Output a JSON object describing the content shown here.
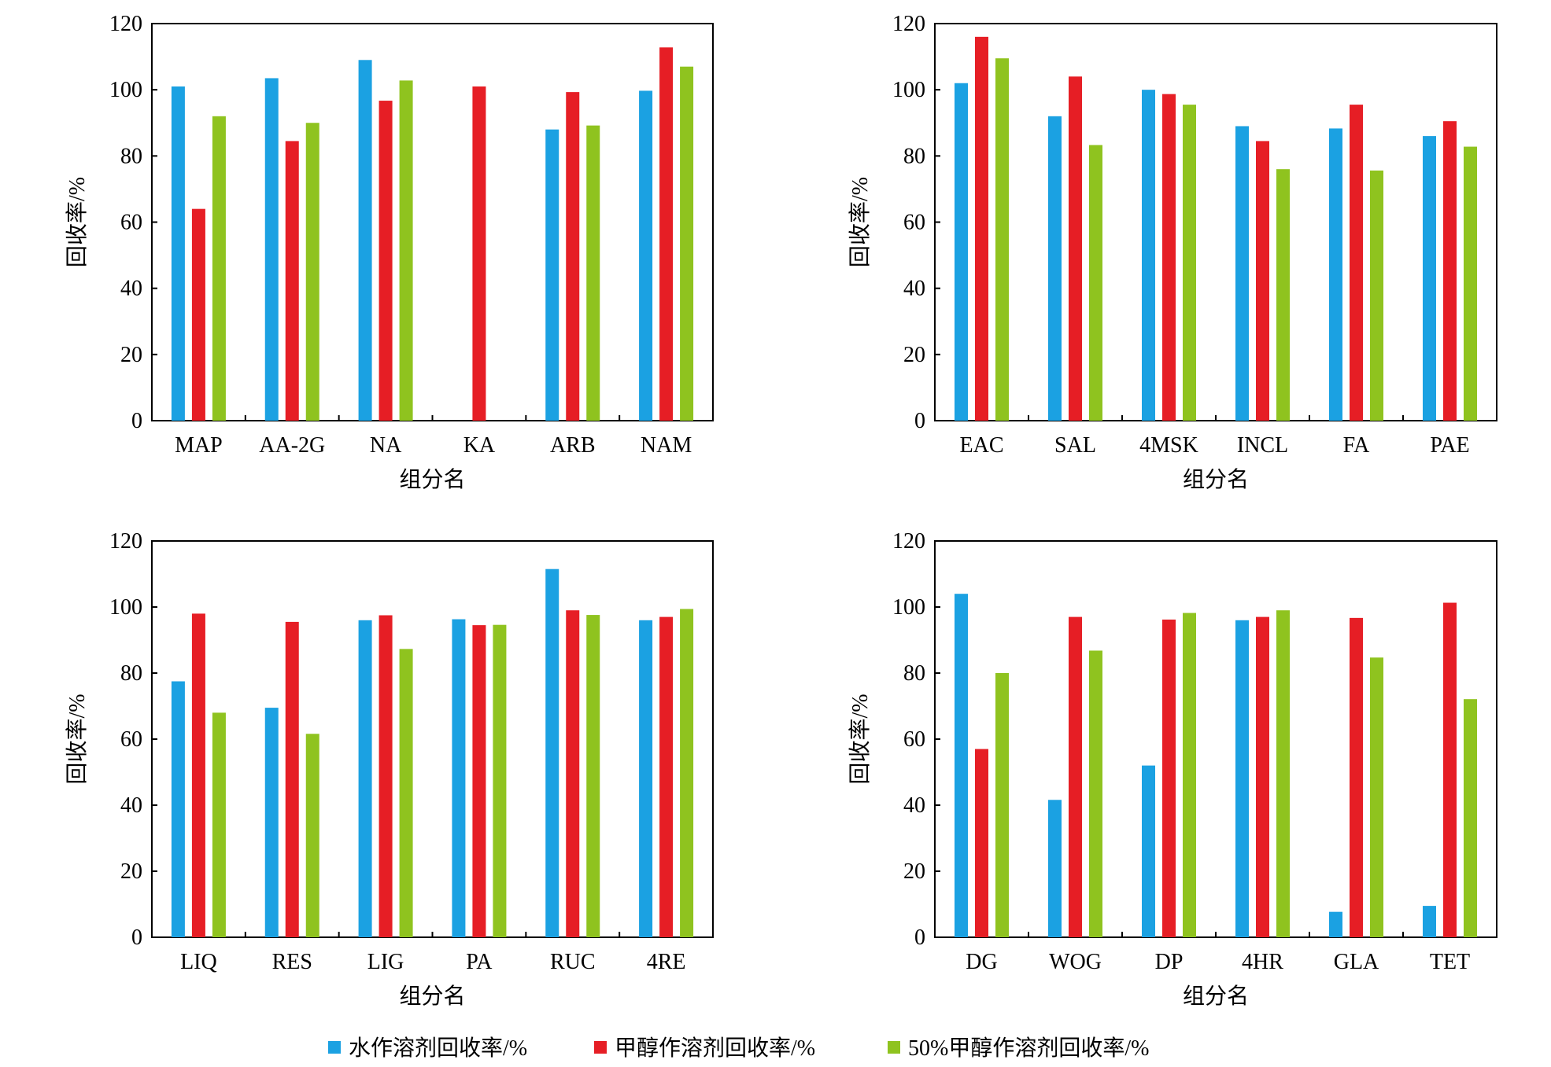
{
  "chart_data": [
    {
      "type": "bar",
      "categories": [
        "MAP",
        "AA-2G",
        "NA",
        "KA",
        "ARB",
        "NAM"
      ],
      "series": [
        {
          "name": "水作溶剂回收率/%",
          "values": [
            101,
            103.5,
            109,
            0,
            88,
            99.7
          ]
        },
        {
          "name": "甲醇作溶剂回收率/%",
          "values": [
            64,
            84.5,
            96.7,
            101,
            99.3,
            112.8
          ]
        },
        {
          "name": "50%甲醇作溶剂回收率/%",
          "values": [
            92,
            90,
            102.8,
            0,
            89.2,
            107
          ]
        }
      ],
      "xlabel": "组分名",
      "ylabel": "回收率/%",
      "ylim": [
        0,
        120
      ],
      "yticks": [
        "0",
        "20",
        "40",
        "60",
        "80",
        "100",
        "120"
      ]
    },
    {
      "type": "bar",
      "categories": [
        "EAC",
        "SAL",
        "4MSK",
        "INCL",
        "FA",
        "PAE"
      ],
      "series": [
        {
          "name": "水作溶剂回收率/%",
          "values": [
            102,
            92,
            100,
            89,
            88.3,
            86
          ]
        },
        {
          "name": "甲醇作溶剂回收率/%",
          "values": [
            116,
            104,
            98.7,
            84.5,
            95.5,
            90.5
          ]
        },
        {
          "name": "50%甲醇作溶剂回收率/%",
          "values": [
            109.5,
            83.3,
            95.5,
            76,
            75.6,
            82.8
          ]
        }
      ],
      "xlabel": "组分名",
      "ylabel": "回收率/%",
      "ylim": [
        0,
        120
      ],
      "yticks": [
        "0",
        "20",
        "40",
        "60",
        "80",
        "100",
        "120"
      ]
    },
    {
      "type": "bar",
      "categories": [
        "LIQ",
        "RES",
        "LIG",
        "PA",
        "RUC",
        "4RE"
      ],
      "series": [
        {
          "name": "水作溶剂回收率/%",
          "values": [
            77.5,
            69.5,
            96,
            96.3,
            111.5,
            96
          ]
        },
        {
          "name": "甲醇作溶剂回收率/%",
          "values": [
            98,
            95.5,
            97.5,
            94.5,
            99,
            97
          ]
        },
        {
          "name": "50%甲醇作溶剂回收率/%",
          "values": [
            68,
            61.6,
            87.3,
            94.6,
            97.6,
            99.4
          ]
        }
      ],
      "xlabel": "组分名",
      "ylabel": "回收率/%",
      "ylim": [
        0,
        120
      ],
      "yticks": [
        "0",
        "20",
        "40",
        "60",
        "80",
        "100",
        "120"
      ]
    },
    {
      "type": "bar",
      "categories": [
        "DG",
        "WOG",
        "DP",
        "4HR",
        "GLA",
        "TET"
      ],
      "series": [
        {
          "name": "水作溶剂回收率/%",
          "values": [
            104,
            41.6,
            52,
            96,
            7.7,
            9.5
          ]
        },
        {
          "name": "甲醇作溶剂回收率/%",
          "values": [
            57,
            97,
            96.2,
            97,
            96.7,
            101.3
          ]
        },
        {
          "name": "50%甲醇作溶剂回收率/%",
          "values": [
            80,
            86.8,
            98.2,
            99,
            84.7,
            72.1
          ]
        }
      ],
      "xlabel": "组分名",
      "ylabel": "回收率/%",
      "ylim": [
        0,
        120
      ],
      "yticks": [
        "0",
        "20",
        "40",
        "60",
        "80",
        "100",
        "120"
      ]
    }
  ],
  "legend": {
    "position": "bottom",
    "items": [
      {
        "label": "水作溶剂回收率/%",
        "color": "#1ba1e2"
      },
      {
        "label": "甲醇作溶剂回收率/%",
        "color": "#e61e25"
      },
      {
        "label": "50%甲醇作溶剂回收率/%",
        "color": "#8fc31f"
      }
    ]
  },
  "colors": [
    "#1ba1e2",
    "#e61e25",
    "#8fc31f"
  ]
}
